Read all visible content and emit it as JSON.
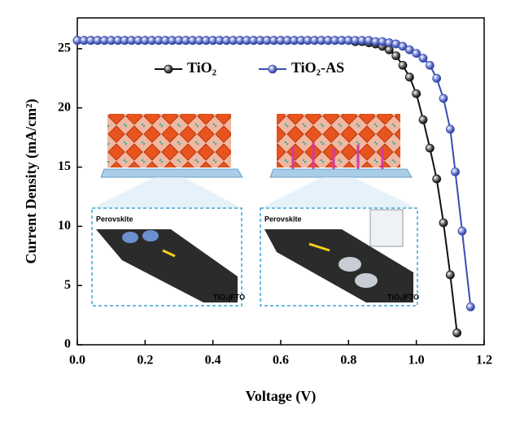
{
  "chart_data": {
    "type": "line",
    "xlabel": "Voltage (V)",
    "ylabel": "Current Density (mA/cm²)",
    "xlim": [
      0,
      1.2
    ],
    "ylim": [
      0,
      27.6
    ],
    "xticks": [
      {
        "value": 0,
        "label": "0.0"
      },
      0.2,
      0.4,
      0.6,
      0.8,
      {
        "value": 1,
        "label": "1.0"
      },
      1.2
    ],
    "yticks": [
      0,
      5,
      10,
      15,
      20,
      25
    ],
    "legend": "upper center",
    "annotations": [
      "Perovskite",
      "TiO₂|FTO",
      "Perovskite",
      "TiO₂|FTO"
    ],
    "series": [
      {
        "name": "TiO₂",
        "color": "#111111",
        "x": [
          0,
          0.02,
          0.04,
          0.06,
          0.08,
          0.1,
          0.12,
          0.14,
          0.16,
          0.18,
          0.2,
          0.22,
          0.24,
          0.26,
          0.28,
          0.3,
          0.32,
          0.34,
          0.36,
          0.38,
          0.4,
          0.42,
          0.44,
          0.46,
          0.48,
          0.5,
          0.52,
          0.54,
          0.56,
          0.58,
          0.6,
          0.62,
          0.64,
          0.66,
          0.68,
          0.7,
          0.72,
          0.74,
          0.76,
          0.78,
          0.8,
          0.82,
          0.84,
          0.86,
          0.88,
          0.9,
          0.92,
          0.94,
          0.96,
          0.98,
          1.0,
          1.02,
          1.04,
          1.06,
          1.08,
          1.1,
          1.12
        ],
        "values": [
          25.7,
          25.7,
          25.7,
          25.7,
          25.7,
          25.7,
          25.7,
          25.7,
          25.7,
          25.7,
          25.7,
          25.7,
          25.7,
          25.7,
          25.7,
          25.7,
          25.7,
          25.7,
          25.7,
          25.7,
          25.7,
          25.7,
          25.7,
          25.7,
          25.7,
          25.7,
          25.7,
          25.7,
          25.7,
          25.7,
          25.7,
          25.7,
          25.7,
          25.7,
          25.7,
          25.7,
          25.7,
          25.7,
          25.7,
          25.7,
          25.7,
          25.6,
          25.6,
          25.5,
          25.4,
          25.2,
          24.9,
          24.4,
          23.6,
          22.6,
          21.2,
          19.0,
          16.6,
          14.0,
          10.3,
          5.9,
          1.0
        ]
      },
      {
        "name": "TiO₂-AS",
        "color": "#3a4db0",
        "x": [
          0,
          0.02,
          0.04,
          0.06,
          0.08,
          0.1,
          0.12,
          0.14,
          0.16,
          0.18,
          0.2,
          0.22,
          0.24,
          0.26,
          0.28,
          0.3,
          0.32,
          0.34,
          0.36,
          0.38,
          0.4,
          0.42,
          0.44,
          0.46,
          0.48,
          0.5,
          0.52,
          0.54,
          0.56,
          0.58,
          0.6,
          0.62,
          0.64,
          0.66,
          0.68,
          0.7,
          0.72,
          0.74,
          0.76,
          0.78,
          0.8,
          0.82,
          0.84,
          0.86,
          0.88,
          0.9,
          0.92,
          0.94,
          0.96,
          0.98,
          1.0,
          1.02,
          1.04,
          1.06,
          1.08,
          1.1,
          1.115,
          1.135,
          1.16
        ],
        "values": [
          25.7,
          25.7,
          25.7,
          25.7,
          25.7,
          25.7,
          25.7,
          25.7,
          25.7,
          25.7,
          25.7,
          25.7,
          25.7,
          25.7,
          25.7,
          25.7,
          25.7,
          25.7,
          25.7,
          25.7,
          25.7,
          25.7,
          25.7,
          25.7,
          25.7,
          25.7,
          25.7,
          25.7,
          25.7,
          25.7,
          25.7,
          25.7,
          25.7,
          25.7,
          25.7,
          25.7,
          25.7,
          25.7,
          25.7,
          25.7,
          25.7,
          25.7,
          25.7,
          25.7,
          25.6,
          25.6,
          25.5,
          25.4,
          25.2,
          24.9,
          24.6,
          24.2,
          23.6,
          22.5,
          20.8,
          18.2,
          14.6,
          9.6,
          3.2
        ]
      }
    ]
  }
}
